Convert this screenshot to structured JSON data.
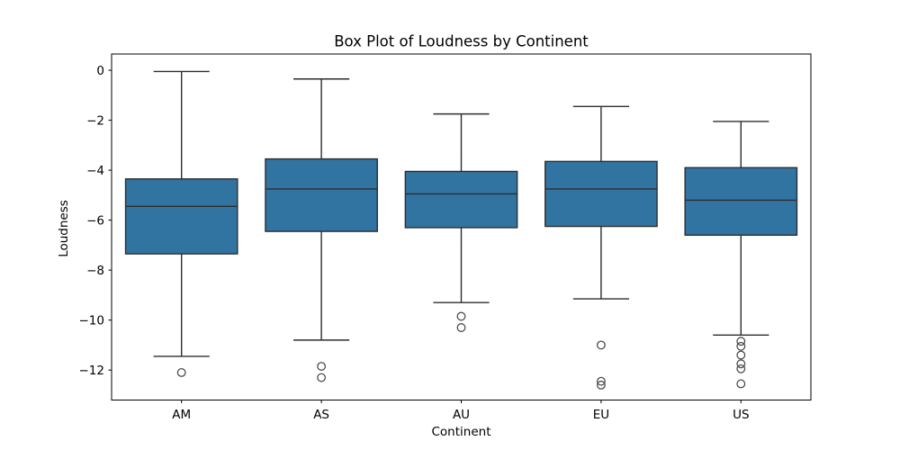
{
  "chart_data": {
    "type": "boxplot",
    "title": "Box Plot of Loudness by Continent",
    "xlabel": "Continent",
    "ylabel": "Loudness",
    "categories": [
      "AM",
      "AS",
      "AU",
      "EU",
      "US"
    ],
    "ytick_values": [
      0,
      -2,
      -4,
      -6,
      -8,
      -10,
      -12
    ],
    "ytick_labels": [
      "0",
      "−2",
      "−4",
      "−6",
      "−8",
      "−10",
      "−12"
    ],
    "ylim": [
      -13.2,
      0.65
    ],
    "grid": false,
    "legend": "none",
    "colors": {
      "box_fill": "#3274a1",
      "line": "#2e2e2e",
      "outlier_stroke": "#4d4d4d",
      "spine": "#000000",
      "background": "#ffffff"
    },
    "series": [
      {
        "category": "AM",
        "whisker_low": -11.45,
        "q1": -7.35,
        "median": -5.45,
        "q3": -4.35,
        "whisker_high": -0.05,
        "outliers": [
          -12.1
        ]
      },
      {
        "category": "AS",
        "whisker_low": -10.8,
        "q1": -6.45,
        "median": -4.75,
        "q3": -3.55,
        "whisker_high": -0.35,
        "outliers": [
          -11.85,
          -12.3
        ]
      },
      {
        "category": "AU",
        "whisker_low": -9.3,
        "q1": -6.3,
        "median": -4.95,
        "q3": -4.05,
        "whisker_high": -1.75,
        "outliers": [
          -9.85,
          -10.3
        ]
      },
      {
        "category": "EU",
        "whisker_low": -9.15,
        "q1": -6.25,
        "median": -4.75,
        "q3": -3.65,
        "whisker_high": -1.45,
        "outliers": [
          -11.0,
          -12.45,
          -12.6
        ]
      },
      {
        "category": "US",
        "whisker_low": -10.6,
        "q1": -6.6,
        "median": -5.2,
        "q3": -3.9,
        "whisker_high": -2.05,
        "outliers": [
          -10.85,
          -11.05,
          -11.4,
          -11.75,
          -11.95,
          -12.55
        ]
      }
    ]
  }
}
